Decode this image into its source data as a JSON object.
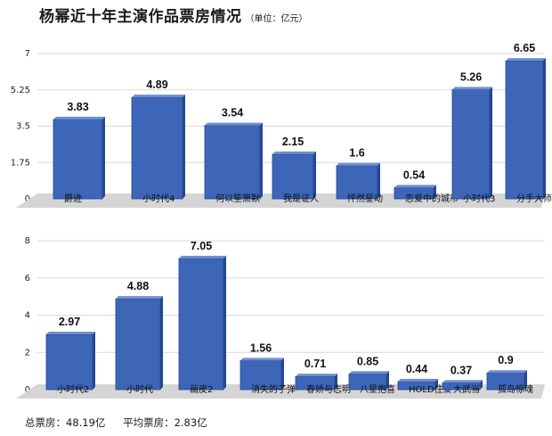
{
  "header": {
    "title": "杨幂近十年主演作品票房情况",
    "unit": "（单位：亿元）"
  },
  "summary": {
    "total": "总票房：48.19亿",
    "average": "平均票房：2.83亿"
  },
  "colors": {
    "bar": "#3d66b8",
    "bar_dark": "#24488f",
    "floor": "#d5d5d5",
    "grid": "#d9d9d9"
  },
  "chart_data": [
    {
      "type": "bar",
      "title": "",
      "xlabel": "",
      "ylabel": "",
      "ylim": [
        0,
        7
      ],
      "yticks": [
        "0",
        "1.75",
        "3.5",
        "5.25",
        "7"
      ],
      "ytick_values": [
        0,
        1.75,
        3.5,
        5.25,
        7
      ],
      "grid": true,
      "categories": [
        "爵迹",
        "小时代4",
        "何以笙箫默",
        "我是证人",
        "怦然星动",
        "恋爱中的城市",
        "小时代3",
        "分手大师"
      ],
      "values": [
        3.83,
        4.89,
        3.54,
        2.15,
        1.6,
        0.54,
        5.26,
        6.65
      ],
      "data_labels": [
        "3.83",
        "4.89",
        "3.54",
        "2.15",
        "1.6",
        "0.54",
        "5.26",
        "6.65"
      ]
    },
    {
      "type": "bar",
      "title": "",
      "xlabel": "",
      "ylabel": "",
      "ylim": [
        0,
        8
      ],
      "yticks": [
        "0",
        "2",
        "4",
        "6",
        "8"
      ],
      "ytick_values": [
        0,
        2,
        4,
        6,
        8
      ],
      "grid": true,
      "categories": [
        "小时代2",
        "小时代",
        "画皮2",
        "消失的子弹",
        "春娇与志明",
        "八星抱喜",
        "HOLD住爱",
        "大武当",
        "孤岛惊魂"
      ],
      "values": [
        2.97,
        4.88,
        7.05,
        1.56,
        0.71,
        0.85,
        0.44,
        0.37,
        0.9
      ],
      "data_labels": [
        "2.97",
        "4.88",
        "7.05",
        "1.56",
        "0.71",
        "0.85",
        "0.44",
        "0.37",
        "0.9"
      ]
    }
  ]
}
